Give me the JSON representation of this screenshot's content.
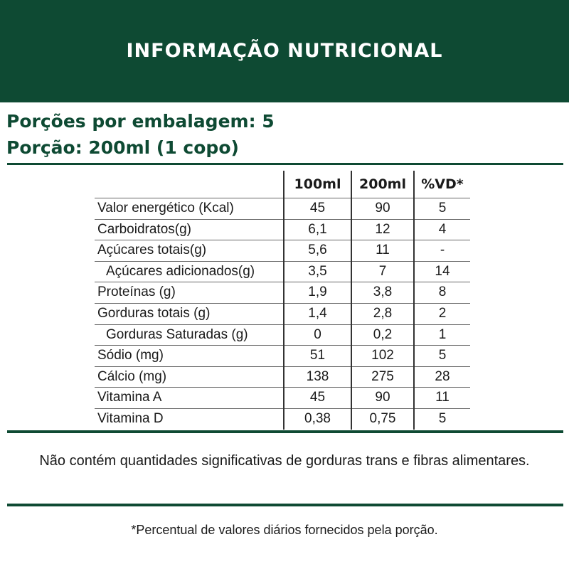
{
  "header": {
    "title": "INFORMAÇÃO NUTRICIONAL"
  },
  "serving": {
    "per_package": "Porções por embalagem: 5",
    "portion": "Porção: 200ml (1 copo)"
  },
  "table": {
    "columns": [
      "100ml",
      "200ml",
      "%VD*"
    ],
    "rows": [
      {
        "label": "Valor energético (Kcal)",
        "v100": "45",
        "v200": "90",
        "vd": "5"
      },
      {
        "label": "Carboidratos(g)",
        "v100": "6,1",
        "v200": "12",
        "vd": "4"
      },
      {
        "label": "Açúcares totais(g)",
        "v100": "5,6",
        "v200": "11",
        "vd": "-"
      },
      {
        "label": "Açúcares adicionados(g)",
        "v100": "3,5",
        "v200": "7",
        "vd": "14"
      },
      {
        "label": "Proteínas (g)",
        "v100": "1,9",
        "v200": "3,8",
        "vd": "8"
      },
      {
        "label": "Gorduras totais (g)",
        "v100": "1,4",
        "v200": "2,8",
        "vd": "2"
      },
      {
        "label": "Gorduras Saturadas (g)",
        "v100": "0",
        "v200": "0,2",
        "vd": "1"
      },
      {
        "label": "Sódio (mg)",
        "v100": "51",
        "v200": "102",
        "vd": "5"
      },
      {
        "label": "Cálcio (mg)",
        "v100": "138",
        "v200": "275",
        "vd": "28"
      },
      {
        "label": "Vitamina A",
        "v100": "45",
        "v200": "90",
        "vd": "11"
      },
      {
        "label": "Vitamina D",
        "v100": "0,38",
        "v200": "0,75",
        "vd": "5"
      }
    ]
  },
  "note": "Não contém quantidades significativas de gorduras trans e fibras alimentares.",
  "footnote": "*Percentual de valores diários fornecidos pela porção.",
  "colors": {
    "brand_green": "#0e4a33"
  }
}
